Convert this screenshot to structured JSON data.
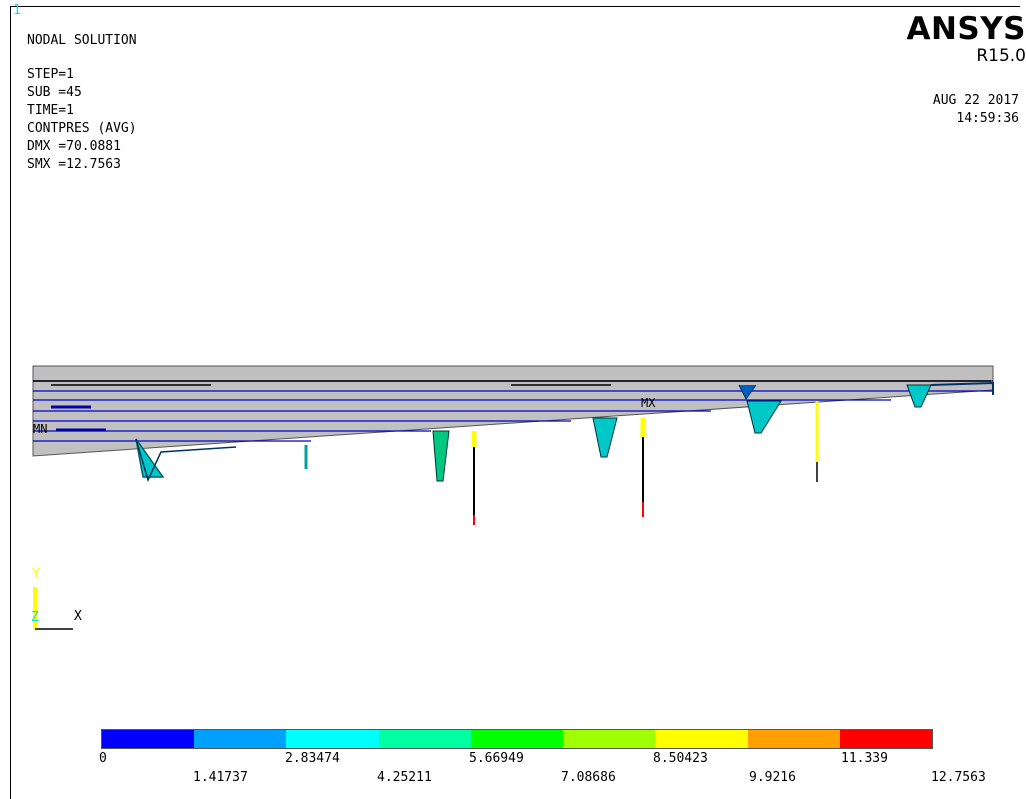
{
  "window": {
    "number": "1"
  },
  "info": {
    "title": "NODAL SOLUTION",
    "step": "STEP=1",
    "sub": "SUB =45",
    "time": "TIME=1",
    "item": "CONTPRES (AVG)",
    "dmx": "DMX =70.0881",
    "smx": "SMX =12.7563"
  },
  "brand": {
    "name": "ANSYS",
    "version": "R15.0"
  },
  "timestamp": {
    "date": "AUG 22 2017",
    "time": "14:59:36"
  },
  "labels": {
    "mx": "MX",
    "mn": "MN"
  },
  "triad": {
    "y": "Y",
    "z": "Z",
    "x": "X"
  },
  "legend": {
    "colors": [
      "#0000ff",
      "#00a0ff",
      "#00ffff",
      "#00ffa0",
      "#00ff00",
      "#a0ff00",
      "#ffff00",
      "#ffa000",
      "#ff0000"
    ],
    "top_labels": [
      "0",
      "2.83474",
      "5.66949",
      "8.50423",
      "11.339"
    ],
    "bottom_labels": [
      "1.41737",
      "4.25211",
      "7.08686",
      "9.9216",
      "12.7563"
    ]
  }
}
